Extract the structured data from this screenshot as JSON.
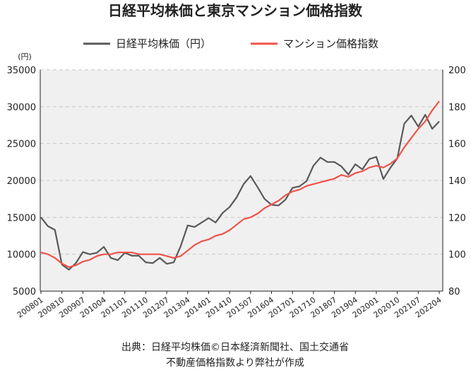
{
  "chart_data": {
    "type": "line",
    "title": "日経平均株価と東京マンション価格指数",
    "y_unit": "(円)",
    "source": [
      "出典：日経平均株価©日本経済新聞社、国土交通省",
      "不動産価格指数より弊社が作成"
    ],
    "categories": [
      "200801",
      null,
      null,
      "200810",
      null,
      null,
      "200907",
      null,
      null,
      "201004",
      null,
      null,
      "201101",
      null,
      null,
      "201110",
      null,
      null,
      "201207",
      null,
      null,
      "201304",
      null,
      null,
      "201401",
      null,
      null,
      "201410",
      null,
      null,
      "201507",
      null,
      null,
      "201604",
      null,
      null,
      "201701",
      null,
      null,
      "201710",
      null,
      null,
      "201807",
      null,
      null,
      "201904",
      null,
      null,
      "202001",
      null,
      null,
      "202010",
      null,
      null,
      "202107",
      null,
      null,
      "202204"
    ],
    "series": [
      {
        "name": "日経平均株価（円）",
        "color": "#595959",
        "values": [
          15000,
          13800,
          13300,
          8600,
          7900,
          8800,
          10300,
          10000,
          10200,
          11000,
          9500,
          9200,
          10200,
          9800,
          9800,
          8900,
          8800,
          9500,
          8700,
          8900,
          11100,
          13900,
          13700,
          14300,
          14900,
          14300,
          15600,
          16400,
          17700,
          19500,
          20600,
          19100,
          17500,
          16700,
          16600,
          17400,
          19000,
          19200,
          19900,
          22000,
          23100,
          22500,
          22500,
          21900,
          20800,
          22200,
          21500,
          22900,
          23200,
          20200,
          21700,
          23000,
          27700,
          28800,
          27300,
          28900,
          27000,
          28000
        ]
      },
      {
        "name": "マンション価格指数",
        "color": "#f0524a",
        "axis": "y2",
        "values": [
          101,
          100,
          98,
          95,
          93,
          94,
          96,
          97,
          99,
          100,
          100,
          101,
          101,
          101,
          100,
          100,
          100,
          100,
          99,
          98,
          99,
          102,
          105,
          107,
          108,
          110,
          111,
          113,
          116,
          119,
          120,
          122,
          125,
          127,
          129,
          132,
          134,
          135,
          137,
          138,
          139,
          140,
          141,
          143,
          142,
          144,
          145,
          147,
          148,
          147,
          149,
          152,
          158,
          163,
          168,
          172,
          178,
          183
        ]
      }
    ],
    "ylim": [
      5000,
      35000
    ],
    "yticks": [
      5000,
      10000,
      15000,
      20000,
      25000,
      30000,
      35000
    ],
    "y2lim": [
      80,
      200
    ],
    "y2ticks": [
      80,
      100,
      120,
      140,
      160,
      180,
      200
    ],
    "grid": true,
    "background": "#f0f0f0"
  }
}
